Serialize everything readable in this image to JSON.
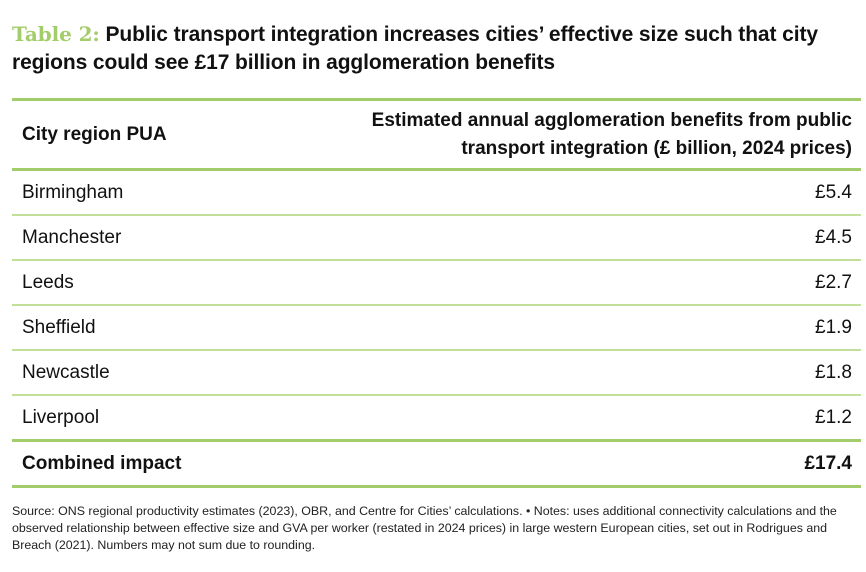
{
  "title": {
    "label": "Table 2:",
    "text": "Public transport integration increases cities’ effective size such that city regions could see £17 billion in agglomeration benefits"
  },
  "colors": {
    "accent": "#a3cd6a",
    "row_rule": "#c3e09a"
  },
  "table": {
    "headers": {
      "region": "City region PUA",
      "benefit": "Estimated annual agglomeration benefits from public transport integration (£ billion, 2024 prices)"
    },
    "rows": [
      {
        "region": "Birmingham",
        "benefit": "£5.4"
      },
      {
        "region": "Manchester",
        "benefit": "£4.5"
      },
      {
        "region": "Leeds",
        "benefit": "£2.7"
      },
      {
        "region": "Sheffield",
        "benefit": "£1.9"
      },
      {
        "region": "Newcastle",
        "benefit": "£1.8"
      },
      {
        "region": "Liverpool",
        "benefit": "£1.2"
      }
    ],
    "total": {
      "region": "Combined impact",
      "benefit": "£17.4"
    }
  },
  "footnote": "Source: ONS regional productivity estimates (2023), OBR, and Centre for Cities’ calculations. • Notes: uses additional connectivity calculations and the observed relationship between effective size and GVA per worker (restated in 2024 prices) in large western European cities, set out in Rodrigues and Breach (2021). Numbers may not sum due to rounding."
}
